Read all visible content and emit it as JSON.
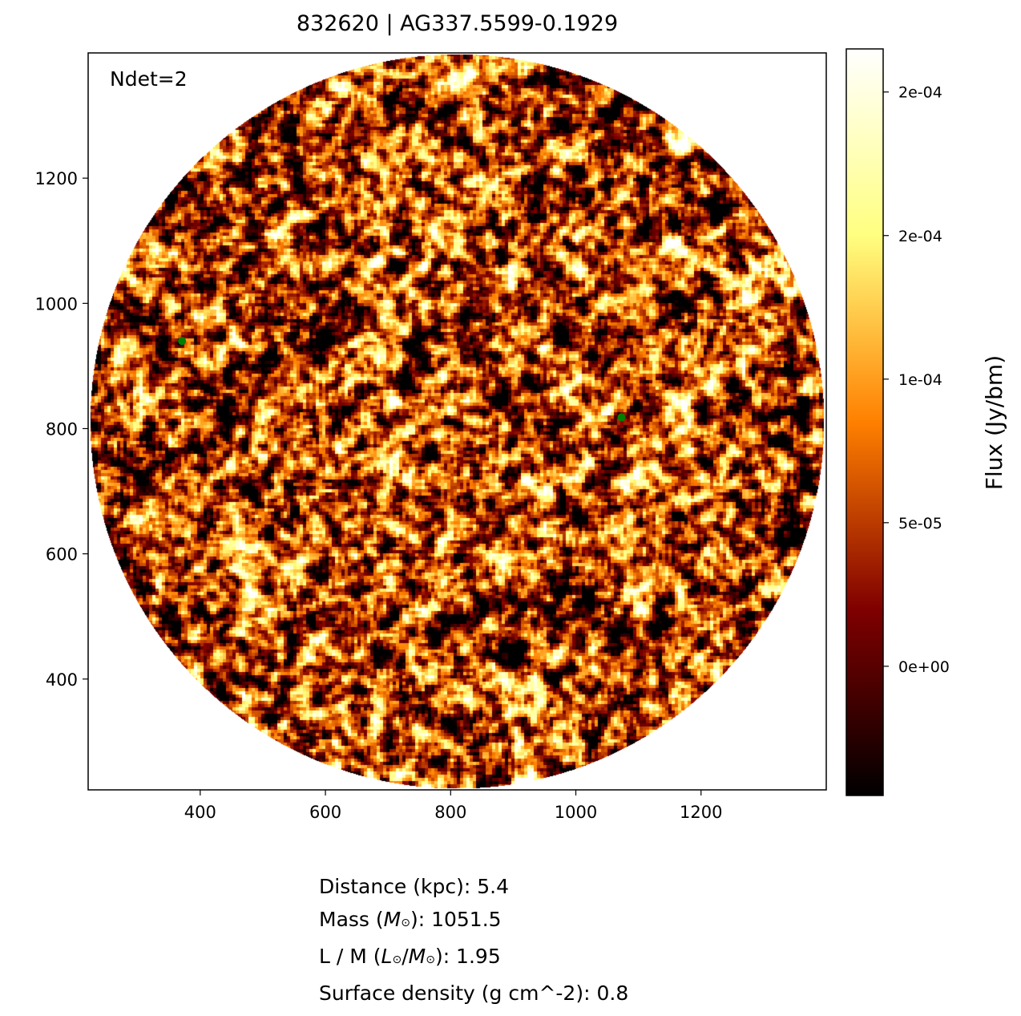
{
  "chart_data": {
    "type": "heatmap",
    "title": "832620 | AG337.5599-0.1929",
    "xlabel": "",
    "ylabel": "",
    "xlim": [
      221,
      1400
    ],
    "ylim": [
      223,
      1400
    ],
    "x_ticks": [
      400,
      600,
      800,
      1000,
      1200
    ],
    "y_ticks": [
      400,
      600,
      800,
      1000,
      1200
    ],
    "image_footprint": {
      "shape": "circle",
      "center": [
        810,
        812
      ],
      "radius": 586
    },
    "colormap": "afmhot",
    "colorbar": {
      "label": "Flux (Jy/bm)",
      "range": [
        -4.5e-05,
        0.000215
      ],
      "ticks": [
        {
          "value": 0.0002,
          "label": "2e-04"
        },
        {
          "value": 0.00015,
          "label": "2e-04"
        },
        {
          "value": 0.0001,
          "label": "1e-04"
        },
        {
          "value": 5e-05,
          "label": "5e-05"
        },
        {
          "value": 0,
          "label": "0e+00"
        }
      ]
    },
    "detections": [
      {
        "x": 371,
        "y": 940
      },
      {
        "x": 1073,
        "y": 818
      }
    ],
    "detection_color": "#008000",
    "annotation": "Ndet=2"
  },
  "info": {
    "distance": "Distance (kpc): 5.4",
    "mass_prefix": "Mass (",
    "mass_sym": "M",
    "mass_suffix": "): 1051.5",
    "lm_prefix": "L / M (",
    "lm_sym1": "L",
    "lm_sym2": "M",
    "lm_suffix": "): 1.95",
    "surface_density": "Surface density (g cm^-2): 0.8",
    "odot": "⊙"
  }
}
